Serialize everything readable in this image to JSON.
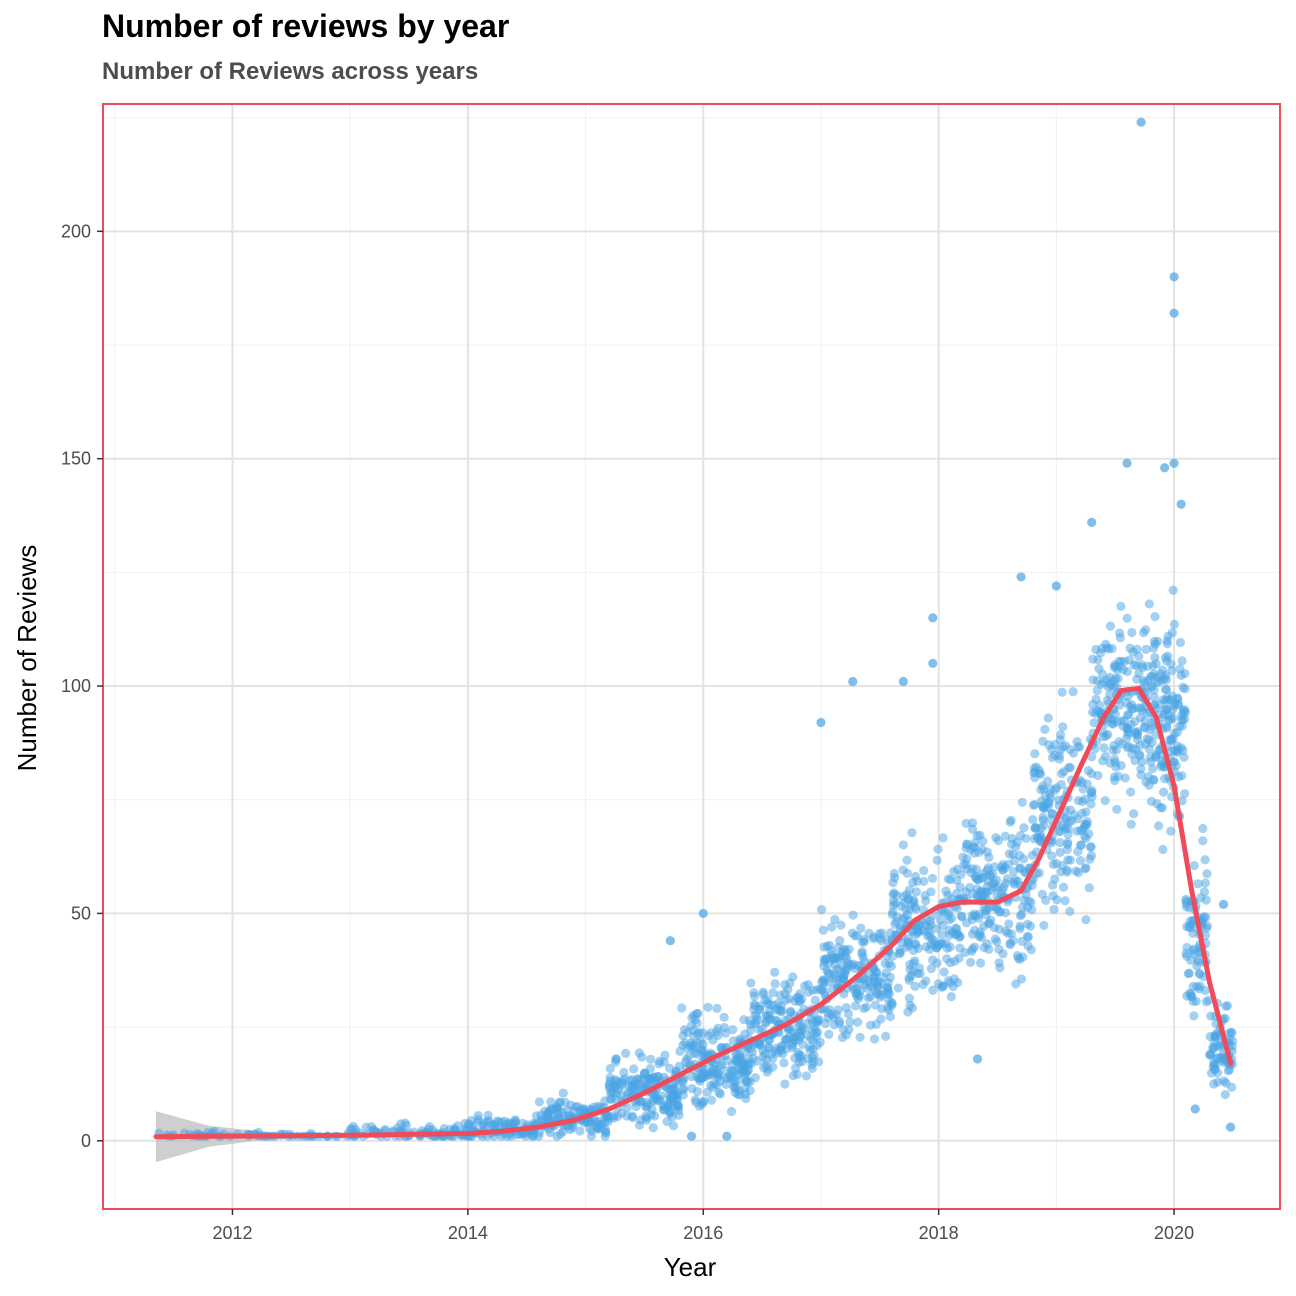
{
  "chart_data": {
    "type": "scatter",
    "title": "Number of reviews by year",
    "subtitle": "Number of Reviews across years",
    "xlabel": "Year",
    "ylabel": "Number of Reviews",
    "xlim": [
      2010.9,
      2020.9
    ],
    "ylim": [
      -15,
      228
    ],
    "x_ticks": [
      2012,
      2014,
      2016,
      2018,
      2020
    ],
    "y_ticks": [
      0,
      50,
      100,
      150,
      200
    ],
    "grid": true,
    "point_color": "#4aa3e3",
    "smooth_color": "#ef4b5a",
    "border_color": "#ef4b5a",
    "ribbon_color": "#bfbfbf",
    "smooth_line": [
      [
        2011.35,
        0.9
      ],
      [
        2011.8,
        1.0
      ],
      [
        2012.5,
        1.1
      ],
      [
        2013.0,
        1.2
      ],
      [
        2013.5,
        1.4
      ],
      [
        2014.0,
        1.6
      ],
      [
        2014.3,
        2.1
      ],
      [
        2014.6,
        3.0
      ],
      [
        2014.9,
        4.5
      ],
      [
        2015.2,
        7.0
      ],
      [
        2015.5,
        10.5
      ],
      [
        2015.8,
        14.5
      ],
      [
        2016.1,
        18.5
      ],
      [
        2016.4,
        22.0
      ],
      [
        2016.7,
        25.5
      ],
      [
        2017.0,
        30.0
      ],
      [
        2017.3,
        36.0
      ],
      [
        2017.6,
        43.0
      ],
      [
        2017.8,
        48.5
      ],
      [
        2018.0,
        51.5
      ],
      [
        2018.2,
        52.5
      ],
      [
        2018.5,
        52.5
      ],
      [
        2018.7,
        55.0
      ],
      [
        2018.85,
        62.0
      ],
      [
        2019.0,
        70.5
      ],
      [
        2019.2,
        82.0
      ],
      [
        2019.4,
        93.0
      ],
      [
        2019.55,
        99.0
      ],
      [
        2019.7,
        99.5
      ],
      [
        2019.85,
        93.0
      ],
      [
        2020.0,
        78.0
      ],
      [
        2020.15,
        55.0
      ],
      [
        2020.3,
        35.0
      ],
      [
        2020.48,
        17.0
      ]
    ],
    "ribbon": [
      [
        2011.35,
        6.5,
        -4.7
      ],
      [
        2011.8,
        3.3,
        -1.3
      ],
      [
        2012.3,
        1.9,
        0.3
      ],
      [
        2013.0,
        1.6,
        0.8
      ],
      [
        2014.0,
        2.0,
        1.2
      ]
    ],
    "outliers": [
      {
        "x": 2019.72,
        "y": 224
      },
      {
        "x": 2020.0,
        "y": 190
      },
      {
        "x": 2020.0,
        "y": 182
      },
      {
        "x": 2019.6,
        "y": 149
      },
      {
        "x": 2020.0,
        "y": 149
      },
      {
        "x": 2019.92,
        "y": 148
      },
      {
        "x": 2020.06,
        "y": 140
      },
      {
        "x": 2019.3,
        "y": 136
      },
      {
        "x": 2018.7,
        "y": 124
      },
      {
        "x": 2019.0,
        "y": 122
      },
      {
        "x": 2017.95,
        "y": 115
      },
      {
        "x": 2017.95,
        "y": 105
      },
      {
        "x": 2017.27,
        "y": 101
      },
      {
        "x": 2017.7,
        "y": 101
      },
      {
        "x": 2017.0,
        "y": 92
      },
      {
        "x": 2016.0,
        "y": 50
      },
      {
        "x": 2015.72,
        "y": 44
      },
      {
        "x": 2018.33,
        "y": 18
      },
      {
        "x": 2020.42,
        "y": 52
      },
      {
        "x": 2020.48,
        "y": 3
      },
      {
        "x": 2020.18,
        "y": 7
      },
      {
        "x": 2016.2,
        "y": 1
      },
      {
        "x": 2015.9,
        "y": 1
      }
    ],
    "scatter_density": [
      {
        "x0": 2011.3,
        "x1": 2013.0,
        "mean": 1.0,
        "spread": 0.8,
        "n": 60
      },
      {
        "x0": 2013.0,
        "x1": 2014.0,
        "mean": 1.8,
        "spread": 1.5,
        "n": 90
      },
      {
        "x0": 2014.0,
        "x1": 2014.6,
        "mean": 2.8,
        "spread": 2.2,
        "n": 90
      },
      {
        "x0": 2014.6,
        "x1": 2015.2,
        "mean": 5.0,
        "spread": 3.5,
        "n": 130
      },
      {
        "x0": 2015.2,
        "x1": 2015.8,
        "mean": 10.5,
        "spread": 6.0,
        "n": 180
      },
      {
        "x0": 2015.8,
        "x1": 2016.4,
        "mean": 17.5,
        "spread": 8.0,
        "n": 200
      },
      {
        "x0": 2016.4,
        "x1": 2017.0,
        "mean": 25.0,
        "spread": 9.0,
        "n": 200
      },
      {
        "x0": 2017.0,
        "x1": 2017.6,
        "mean": 36.0,
        "spread": 11.0,
        "n": 200
      },
      {
        "x0": 2017.6,
        "x1": 2018.2,
        "mean": 47.0,
        "spread": 12.0,
        "n": 200
      },
      {
        "x0": 2018.2,
        "x1": 2018.8,
        "mean": 54.0,
        "spread": 14.0,
        "n": 200
      },
      {
        "x0": 2018.8,
        "x1": 2019.3,
        "mean": 72.0,
        "spread": 16.0,
        "n": 180
      },
      {
        "x0": 2019.3,
        "x1": 2019.8,
        "mean": 95.0,
        "spread": 17.0,
        "n": 200
      },
      {
        "x0": 2019.8,
        "x1": 2020.1,
        "mean": 92.0,
        "spread": 18.0,
        "n": 150
      },
      {
        "x0": 2020.1,
        "x1": 2020.3,
        "mean": 45.0,
        "spread": 14.0,
        "n": 80
      },
      {
        "x0": 2020.3,
        "x1": 2020.5,
        "mean": 20.0,
        "spread": 8.0,
        "n": 70
      }
    ]
  }
}
